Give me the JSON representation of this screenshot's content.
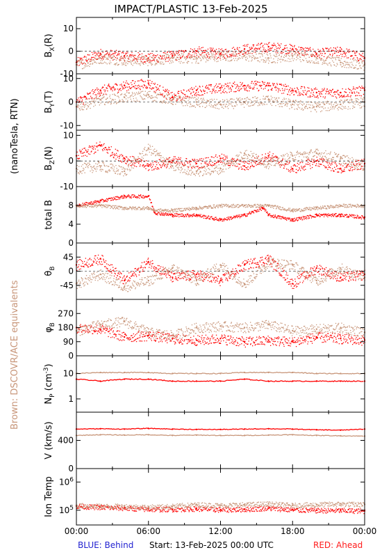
{
  "title": "IMPACT/PLASTIC   13-Feb-2025",
  "left_label": "(nanoTesla, RTN)",
  "brown_note": "Brown: DSCOVR/ACE equivalents",
  "footer": {
    "blue": "BLUE: Behind",
    "start": "Start: 13-Feb-2025 00:00 UTC",
    "red": "RED: Ahead"
  },
  "colors": {
    "ahead": "#ff0000",
    "dscovr": "#c8967a",
    "zero_line": "#000000"
  },
  "x_ticks": [
    "00:00",
    "06:00",
    "12:00",
    "18:00",
    "00:00"
  ],
  "chart_data": [
    {
      "type": "scatter",
      "panel": "bx",
      "ylabel": "B_X(R)",
      "ylabel_main": "B",
      "ylabel_sub": "X",
      "ylabel_suffix": "(R)",
      "ylim": [
        -10,
        15
      ],
      "yticks": [
        "10",
        "0",
        "-10"
      ],
      "ytick_values": [
        10,
        0,
        -10
      ],
      "zero_line": true,
      "x_range_hours": [
        0,
        24
      ],
      "series": [
        {
          "color": "#ff0000",
          "x": [
            0,
            2,
            4,
            6,
            8,
            10,
            12,
            14,
            16,
            18,
            20,
            22,
            24
          ],
          "y": [
            -5,
            -1,
            -2,
            -3,
            -2,
            0,
            -1,
            1,
            2,
            1,
            -1,
            0,
            -3
          ]
        },
        {
          "color": "#c8967a",
          "x": [
            0,
            2,
            4,
            6,
            8,
            10,
            12,
            14,
            16,
            18,
            20,
            22,
            24
          ],
          "y": [
            -6,
            -3,
            -4,
            -4,
            -3,
            -3,
            -2,
            -2,
            -3,
            -2,
            -3,
            -5,
            -6
          ]
        }
      ]
    },
    {
      "type": "scatter",
      "panel": "by",
      "ylabel": "B_Y(T)",
      "ylabel_main": "B",
      "ylabel_sub": "Y",
      "ylabel_suffix": "(T)",
      "ylim": [
        -12,
        12
      ],
      "yticks": [
        "10",
        "0",
        "-10"
      ],
      "ytick_values": [
        10,
        0,
        -10
      ],
      "zero_line": true,
      "x_range_hours": [
        0,
        24
      ],
      "series": [
        {
          "color": "#ff0000",
          "x": [
            0,
            2,
            4,
            6,
            8,
            10,
            12,
            14,
            16,
            18,
            20,
            22,
            24
          ],
          "y": [
            0,
            5,
            7,
            8,
            2,
            5,
            6,
            7,
            7,
            5,
            4,
            4,
            5
          ]
        },
        {
          "color": "#c8967a",
          "x": [
            0,
            2,
            4,
            6,
            8,
            10,
            12,
            14,
            16,
            18,
            20,
            22,
            24
          ],
          "y": [
            -2,
            1,
            2,
            3,
            1,
            0,
            -1,
            0,
            1,
            -1,
            -2,
            -1,
            0
          ]
        }
      ]
    },
    {
      "type": "scatter",
      "panel": "bz",
      "ylabel": "B_Z(N)",
      "ylabel_main": "B",
      "ylabel_sub": "Z",
      "ylabel_suffix": "(N)",
      "ylim": [
        -10,
        12
      ],
      "yticks": [
        "10",
        "0",
        "-10"
      ],
      "ytick_values": [
        10,
        0,
        -10
      ],
      "zero_line": true,
      "x_range_hours": [
        0,
        24
      ],
      "series": [
        {
          "color": "#ff0000",
          "x": [
            0,
            2,
            4,
            6,
            8,
            10,
            12,
            14,
            16,
            18,
            20,
            22,
            24
          ],
          "y": [
            2,
            6,
            1,
            -2,
            0,
            -1,
            1,
            -2,
            2,
            -3,
            0,
            -3,
            -1
          ]
        },
        {
          "color": "#c8967a",
          "x": [
            0,
            2,
            4,
            6,
            8,
            10,
            12,
            14,
            16,
            18,
            20,
            22,
            24
          ],
          "y": [
            -3,
            -2,
            -4,
            5,
            -2,
            -4,
            -3,
            3,
            -1,
            2,
            3,
            1,
            -2
          ]
        }
      ]
    },
    {
      "type": "scatter",
      "panel": "btot",
      "ylabel": "total B",
      "ylim": [
        0,
        12
      ],
      "yticks": [
        "8",
        "4",
        "0"
      ],
      "ytick_values": [
        8,
        4,
        0
      ],
      "zero_line": false,
      "x_range_hours": [
        0,
        24
      ],
      "series": [
        {
          "color": "#ff0000",
          "x": [
            0,
            2,
            4,
            6,
            6.5,
            8,
            10,
            12,
            14,
            15.5,
            16,
            18,
            20,
            22,
            24
          ],
          "y": [
            8,
            9,
            10,
            10,
            6.5,
            6,
            6,
            5,
            6,
            7.5,
            6,
            5,
            6,
            6,
            5.5
          ]
        },
        {
          "color": "#c8967a",
          "x": [
            0,
            2,
            4,
            6,
            6.5,
            8,
            10,
            12,
            14,
            16,
            18,
            20,
            22,
            24
          ],
          "y": [
            8,
            8,
            7.5,
            7.5,
            7,
            7,
            7.5,
            8,
            8,
            8,
            7,
            7.5,
            8,
            8
          ]
        }
      ]
    },
    {
      "type": "scatter",
      "panel": "theta",
      "ylabel": "θB",
      "ylabel_main": "θ",
      "ylabel_sub": "B",
      "ylim": [
        -90,
        90
      ],
      "yticks": [
        "45",
        "0",
        "-45"
      ],
      "ytick_values": [
        45,
        0,
        -45
      ],
      "zero_line": true,
      "x_range_hours": [
        0,
        24
      ],
      "series": [
        {
          "color": "#ff0000",
          "x": [
            0,
            2,
            4,
            6,
            8,
            10,
            12,
            14,
            16,
            18,
            20,
            22,
            24
          ],
          "y": [
            20,
            40,
            -30,
            30,
            -20,
            -10,
            -30,
            20,
            40,
            -40,
            10,
            -20,
            -10
          ]
        },
        {
          "color": "#c8967a",
          "x": [
            0,
            2,
            4,
            6,
            8,
            10,
            12,
            14,
            16,
            18,
            20,
            22,
            24
          ],
          "y": [
            -40,
            -10,
            -50,
            -30,
            10,
            -30,
            20,
            -40,
            30,
            20,
            -30,
            10,
            -20
          ]
        }
      ]
    },
    {
      "type": "scatter",
      "panel": "phi",
      "ylabel": "φB",
      "ylabel_main": "φ",
      "ylabel_sub": "B",
      "ylim": [
        0,
        360
      ],
      "yticks": [
        "270",
        "180",
        "90",
        "0"
      ],
      "ytick_values": [
        270,
        180,
        90,
        0
      ],
      "zero_line": false,
      "x_range_hours": [
        0,
        24
      ],
      "series": [
        {
          "color": "#ff0000",
          "x": [
            0,
            2,
            4,
            6,
            8,
            10,
            12,
            14,
            16,
            18,
            20,
            22,
            24
          ],
          "y": [
            180,
            170,
            120,
            130,
            110,
            100,
            110,
            90,
            100,
            90,
            120,
            110,
            100
          ]
        },
        {
          "color": "#c8967a",
          "x": [
            0,
            2,
            4,
            6,
            8,
            10,
            12,
            14,
            16,
            18,
            20,
            22,
            24
          ],
          "y": [
            160,
            200,
            220,
            150,
            130,
            180,
            190,
            180,
            200,
            160,
            170,
            180,
            150
          ]
        }
      ]
    },
    {
      "type": "line",
      "panel": "np",
      "ylabel": "NP (cm-3)",
      "ylabel_main": "N",
      "ylabel_sub": "P",
      "ylabel_suffix": " (cm",
      "ylabel_sup": "-3",
      "ylabel_close": ")",
      "yscale": "log",
      "ylim": [
        0.3,
        50
      ],
      "yticks": [
        "10",
        "1"
      ],
      "ytick_values": [
        10,
        1
      ],
      "zero_line": false,
      "x_range_hours": [
        0,
        24
      ],
      "series": [
        {
          "color": "#ff0000",
          "x": [
            0,
            2,
            4,
            6,
            8,
            10,
            12,
            14,
            16,
            18,
            20,
            22,
            24
          ],
          "y": [
            6,
            5,
            6,
            6,
            5,
            5,
            5,
            6,
            5,
            5,
            5,
            5,
            5
          ]
        },
        {
          "color": "#c8967a",
          "x": [
            0,
            2,
            4,
            6,
            8,
            10,
            12,
            14,
            16,
            18,
            20,
            22,
            24
          ],
          "y": [
            10,
            11,
            11,
            11,
            10,
            10,
            10,
            11,
            11,
            11,
            10,
            10,
            10
          ]
        }
      ]
    },
    {
      "type": "line",
      "panel": "v",
      "ylabel": "V (km/s)",
      "ylim": [
        0,
        800
      ],
      "yticks": [
        "400",
        "0"
      ],
      "ytick_values": [
        400,
        0
      ],
      "zero_line": false,
      "x_range_hours": [
        0,
        24
      ],
      "series": [
        {
          "color": "#ff0000",
          "x": [
            0,
            2,
            4,
            6,
            8,
            10,
            12,
            14,
            16,
            18,
            20,
            22,
            24
          ],
          "y": [
            560,
            565,
            560,
            570,
            560,
            555,
            555,
            560,
            565,
            560,
            550,
            545,
            560
          ]
        },
        {
          "color": "#c8967a",
          "x": [
            0,
            2,
            4,
            6,
            8,
            10,
            12,
            14,
            16,
            18,
            20,
            22,
            24
          ],
          "y": [
            470,
            480,
            475,
            480,
            470,
            475,
            470,
            470,
            475,
            480,
            470,
            465,
            460
          ]
        }
      ]
    },
    {
      "type": "scatter",
      "panel": "temp",
      "ylabel": "Ion Temp",
      "yscale": "log",
      "ylim": [
        30000,
        3000000
      ],
      "yticks": [
        "10^6",
        "10^5"
      ],
      "ytick_values": [
        1000000,
        100000
      ],
      "ytick_base": "10",
      "ytick_exps": [
        "6",
        "5"
      ],
      "zero_line": false,
      "x_range_hours": [
        0,
        24
      ],
      "series": [
        {
          "color": "#ff0000",
          "x": [
            0,
            2,
            4,
            6,
            8,
            10,
            12,
            14,
            16,
            18,
            20,
            22,
            24
          ],
          "y": [
            140000,
            130000,
            120000,
            110000,
            110000,
            115000,
            105000,
            110000,
            120000,
            105000,
            100000,
            100000,
            95000
          ]
        },
        {
          "color": "#c8967a",
          "x": [
            0,
            2,
            4,
            6,
            8,
            10,
            12,
            14,
            16,
            18,
            20,
            22,
            24
          ],
          "y": [
            150000,
            140000,
            140000,
            130000,
            140000,
            160000,
            150000,
            160000,
            170000,
            150000,
            160000,
            170000,
            160000
          ]
        }
      ]
    }
  ]
}
